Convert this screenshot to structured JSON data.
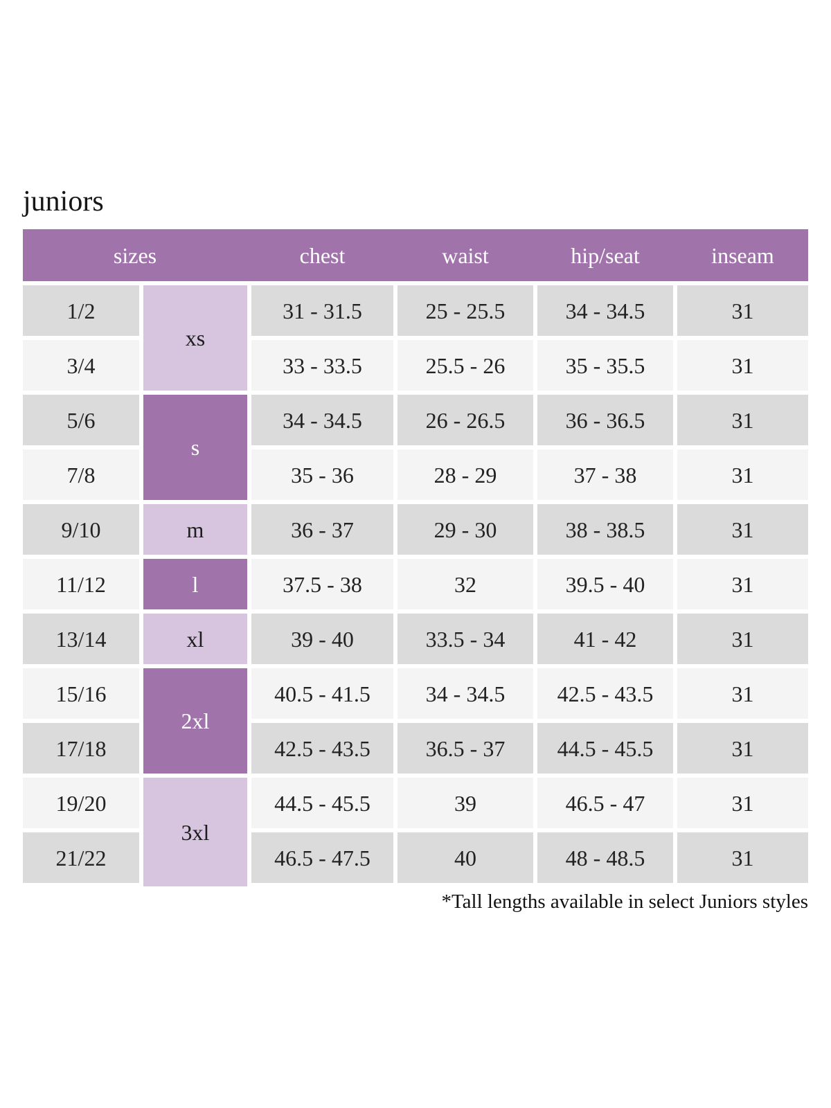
{
  "page": {
    "title": "juniors",
    "footnote": "*Tall lengths available in select Juniors styles"
  },
  "table": {
    "headers": [
      "sizes",
      "chest",
      "waist",
      "hip/seat",
      "inseam"
    ],
    "size_groups": [
      {
        "label": "xs",
        "tone": "light",
        "rows": 2
      },
      {
        "label": "s",
        "tone": "dark",
        "rows": 2
      },
      {
        "label": "m",
        "tone": "light",
        "rows": 1
      },
      {
        "label": "l",
        "tone": "dark",
        "rows": 1
      },
      {
        "label": "xl",
        "tone": "light",
        "rows": 1
      },
      {
        "label": "2xl",
        "tone": "dark",
        "rows": 2
      },
      {
        "label": "3xl",
        "tone": "light",
        "rows": 2
      }
    ],
    "rows": [
      {
        "size": "1/2",
        "chest": "31 - 31.5",
        "waist": "25 - 25.5",
        "hip_seat": "34 - 34.5",
        "inseam": "31"
      },
      {
        "size": "3/4",
        "chest": "33 - 33.5",
        "waist": "25.5 - 26",
        "hip_seat": "35 - 35.5",
        "inseam": "31"
      },
      {
        "size": "5/6",
        "chest": "34 - 34.5",
        "waist": "26 - 26.5",
        "hip_seat": "36 - 36.5",
        "inseam": "31"
      },
      {
        "size": "7/8",
        "chest": "35 - 36",
        "waist": "28 - 29",
        "hip_seat": "37 - 38",
        "inseam": "31"
      },
      {
        "size": "9/10",
        "chest": "36 - 37",
        "waist": "29 - 30",
        "hip_seat": "38 - 38.5",
        "inseam": "31"
      },
      {
        "size": "11/12",
        "chest": "37.5 - 38",
        "waist": "32",
        "hip_seat": "39.5 - 40",
        "inseam": "31"
      },
      {
        "size": "13/14",
        "chest": "39 - 40",
        "waist": "33.5 - 34",
        "hip_seat": "41 - 42",
        "inseam": "31"
      },
      {
        "size": "15/16",
        "chest": "40.5 - 41.5",
        "waist": "34 - 34.5",
        "hip_seat": "42.5 - 43.5",
        "inseam": "31"
      },
      {
        "size": "17/18",
        "chest": "42.5 - 43.5",
        "waist": "36.5 - 37",
        "hip_seat": "44.5 - 45.5",
        "inseam": "31"
      },
      {
        "size": "19/20",
        "chest": "44.5 - 45.5",
        "waist": "39",
        "hip_seat": "46.5 - 47",
        "inseam": "31"
      },
      {
        "size": "21/22",
        "chest": "46.5 - 47.5",
        "waist": "40",
        "hip_seat": "48 - 48.5",
        "inseam": "31"
      }
    ],
    "colors": {
      "header_bg": "#a173ab",
      "size_dark_bg": "#a173ab",
      "size_light_bg": "#d7c5df",
      "row_odd_bg": "#dcdbdc",
      "row_even_bg": "#f5f4f5",
      "header_text": "#ffffff",
      "cell_text": "#222222"
    }
  }
}
